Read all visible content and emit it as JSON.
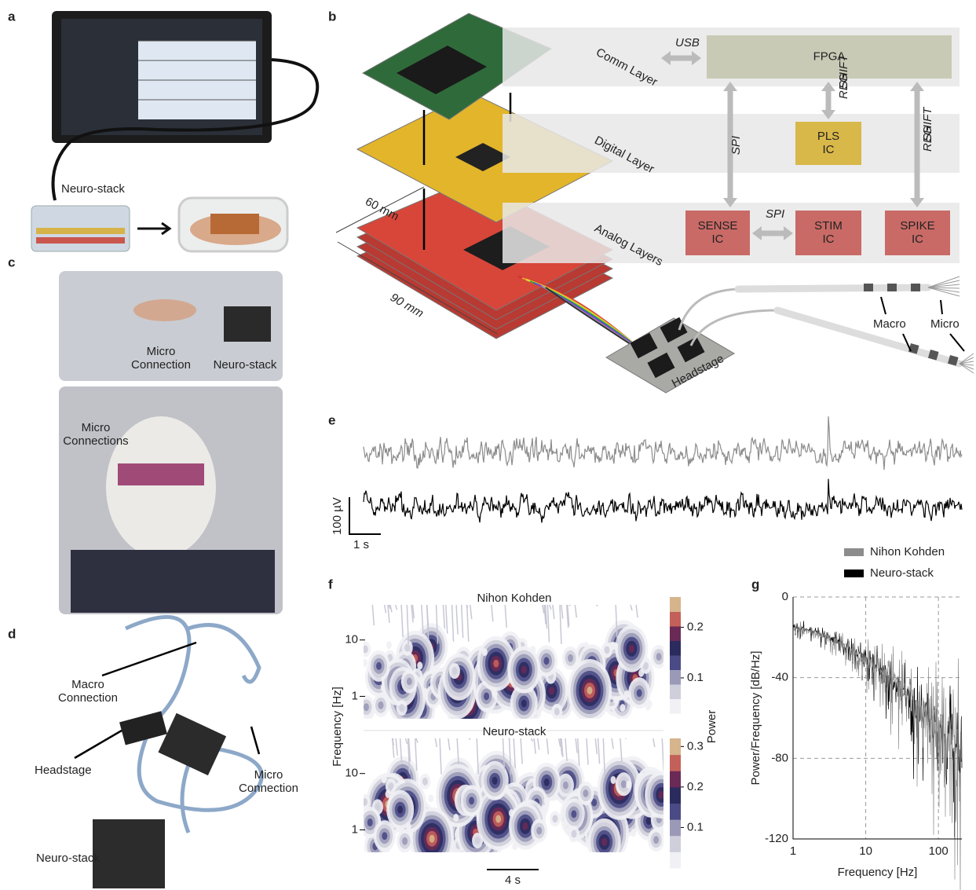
{
  "panel_labels": {
    "a": "a",
    "b": "b",
    "c": "c",
    "d": "d",
    "e": "e",
    "f": "f",
    "g": "g"
  },
  "panel_a": {
    "device_label": "Neuro-stack"
  },
  "panel_b": {
    "layers": [
      "Comm Layer",
      "Digital Layer",
      "Analog Layers"
    ],
    "dimensions": [
      "60 mm",
      "90 mm"
    ],
    "blocks": [
      [
        "FPGA"
      ],
      [
        "PLS",
        "IC"
      ],
      [
        "SENSE",
        "IC"
      ],
      [
        "STIM",
        "IC"
      ],
      [
        "SPIKE",
        "IC"
      ]
    ],
    "buses": [
      [
        "USB"
      ],
      [
        "SPI"
      ],
      [
        "SHIFT",
        "REG"
      ],
      [
        "SPI"
      ],
      [
        "SHIFT",
        "REG"
      ]
    ],
    "electrode_labels": [
      "Headstage",
      "Macro",
      "Micro"
    ]
  },
  "panel_c": {
    "labels": [
      [
        "Micro",
        "Connection"
      ],
      [
        "Neuro-stack"
      ],
      [
        "Micro",
        "Connections"
      ]
    ]
  },
  "panel_d": {
    "labels": [
      [
        "Macro",
        "Connection"
      ],
      [
        "Headstage"
      ],
      [
        "Micro",
        "Connection"
      ],
      [
        "Neuro-stack"
      ]
    ]
  },
  "panel_e": {
    "scale_bars": [
      "100 µV",
      "1 s"
    ],
    "legend": [
      {
        "name": "Nihon Kohden",
        "color": "#8c8c8c"
      },
      {
        "name": "Neuro-stack",
        "color": "#000000"
      }
    ]
  },
  "panel_f": {
    "ylabel": "Frequency [Hz]",
    "colorbar_label": "Power",
    "time_scale": "4 s",
    "colormap": [
      "#f1f1f5",
      "#cfcfdc",
      "#9a9ab8",
      "#4a4a86",
      "#2b2b5e",
      "#6a2a55",
      "#c4605a",
      "#d6b48c"
    ],
    "plots": [
      {
        "title": "Nihon Kohden",
        "ylim": [
          0.4,
          42
        ],
        "yticks": [
          1,
          10
        ],
        "clim": [
          0.03,
          0.26
        ],
        "cticks": [
          0.1,
          0.2
        ]
      },
      {
        "title": "Neuro-stack",
        "ylim": [
          0.4,
          42
        ],
        "yticks": [
          1,
          10
        ],
        "clim": [
          0,
          0.32
        ],
        "cticks": [
          0.1,
          0.2,
          0.3
        ]
      }
    ]
  },
  "panel_g": {
    "xlabel": "Frequency [Hz]",
    "ylabel": "Power/Frequency [dB/Hz]",
    "xlim": [
      1,
      210
    ],
    "ylim": [
      -120,
      0
    ],
    "xticks": [
      1,
      10,
      100
    ],
    "yticks": [
      0,
      -40,
      -80,
      -120
    ],
    "log_x": true,
    "grid": true
  }
}
